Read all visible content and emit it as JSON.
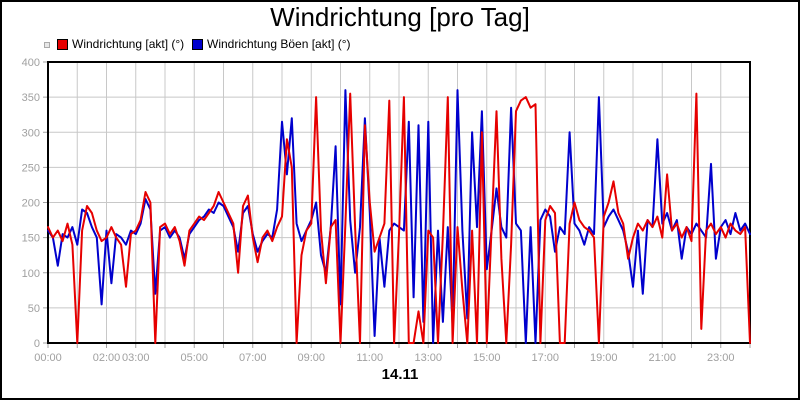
{
  "title": "Windrichtung [pro Tag]",
  "date_label": "14.11",
  "legend": {
    "items": [
      {
        "label": "Windrichtung [akt] (°)",
        "color": "#e60000"
      },
      {
        "label": "Windrichtung Böen [akt] (°)",
        "color": "#0000cd"
      }
    ]
  },
  "colors": {
    "series_red": "#e60000",
    "series_blue": "#0000cd",
    "grid": "#c8c8c8",
    "tick_text": "#a0a0a0",
    "axis_border": "#000000",
    "background": "#ffffff"
  },
  "chart_data": {
    "type": "line",
    "title": "Windrichtung [pro Tag]",
    "xlabel": "14.11",
    "ylabel": "",
    "ylim": [
      0,
      400
    ],
    "y_ticks": [
      0,
      50,
      100,
      150,
      200,
      250,
      300,
      350,
      400
    ],
    "x_start_hour": 0,
    "x_end_hour": 24,
    "x_gridline_every_hours": 1,
    "step_minutes": 10,
    "grid": true,
    "legend_position": "top-left",
    "x_tick_labels": [
      {
        "hour": 0,
        "label": "00:00"
      },
      {
        "hour": 2,
        "label": "02:00"
      },
      {
        "hour": 3,
        "label": "03:00"
      },
      {
        "hour": 5,
        "label": "05:00"
      },
      {
        "hour": 7,
        "label": "07:00"
      },
      {
        "hour": 9,
        "label": "09:00"
      },
      {
        "hour": 11,
        "label": "11:00"
      },
      {
        "hour": 13,
        "label": "13:00"
      },
      {
        "hour": 15,
        "label": "15:00"
      },
      {
        "hour": 17,
        "label": "17:00"
      },
      {
        "hour": 19,
        "label": "19:00"
      },
      {
        "hour": 21,
        "label": "21:00"
      },
      {
        "hour": 23,
        "label": "23:00"
      }
    ],
    "series": [
      {
        "name": "Windrichtung [akt] (°)",
        "color": "#e60000",
        "values": [
          165,
          150,
          160,
          145,
          170,
          140,
          0,
          160,
          195,
          185,
          160,
          145,
          150,
          165,
          150,
          140,
          80,
          155,
          160,
          175,
          215,
          200,
          0,
          165,
          170,
          155,
          165,
          145,
          110,
          160,
          170,
          180,
          175,
          185,
          195,
          215,
          200,
          185,
          170,
          100,
          195,
          210,
          150,
          115,
          150,
          160,
          145,
          165,
          180,
          290,
          250,
          0,
          125,
          160,
          170,
          350,
          160,
          85,
          165,
          175,
          0,
          170,
          355,
          165,
          0,
          310,
          200,
          130,
          150,
          170,
          345,
          0,
          155,
          350,
          0,
          0,
          45,
          0,
          160,
          150,
          0,
          155,
          350,
          0,
          165,
          75,
          0,
          160,
          0,
          300,
          0,
          165,
          330,
          120,
          0,
          140,
          330,
          345,
          350,
          335,
          340,
          0,
          175,
          195,
          185,
          0,
          0,
          170,
          200,
          175,
          165,
          160,
          150,
          0,
          180,
          200,
          230,
          185,
          170,
          120,
          150,
          170,
          160,
          175,
          165,
          180,
          150,
          240,
          160,
          170,
          150,
          165,
          145,
          355,
          20,
          160,
          170,
          155,
          165,
          150,
          170,
          160,
          155,
          165,
          0
        ]
      },
      {
        "name": "Windrichtung Böen [akt] (°)",
        "color": "#0000cd",
        "values": [
          160,
          150,
          110,
          155,
          150,
          165,
          140,
          190,
          185,
          165,
          150,
          55,
          160,
          85,
          155,
          150,
          140,
          160,
          155,
          170,
          205,
          190,
          70,
          160,
          165,
          150,
          160,
          150,
          120,
          155,
          165,
          175,
          180,
          190,
          185,
          200,
          195,
          180,
          165,
          130,
          185,
          195,
          155,
          130,
          145,
          155,
          150,
          190,
          315,
          240,
          320,
          170,
          145,
          160,
          175,
          200,
          125,
          100,
          165,
          280,
          55,
          360,
          175,
          100,
          165,
          320,
          185,
          10,
          150,
          80,
          160,
          170,
          165,
          160,
          315,
          65,
          310,
          30,
          315,
          0,
          160,
          30,
          165,
          25,
          360,
          160,
          35,
          300,
          165,
          330,
          105,
          160,
          220,
          165,
          150,
          335,
          170,
          160,
          0,
          165,
          0,
          175,
          190,
          180,
          130,
          165,
          155,
          300,
          170,
          160,
          140,
          165,
          155,
          350,
          165,
          180,
          190,
          175,
          160,
          130,
          80,
          160,
          70,
          175,
          165,
          290,
          170,
          185,
          160,
          175,
          120,
          165,
          155,
          170,
          160,
          150,
          255,
          120,
          165,
          175,
          155,
          185,
          160,
          170,
          155
        ]
      }
    ]
  }
}
